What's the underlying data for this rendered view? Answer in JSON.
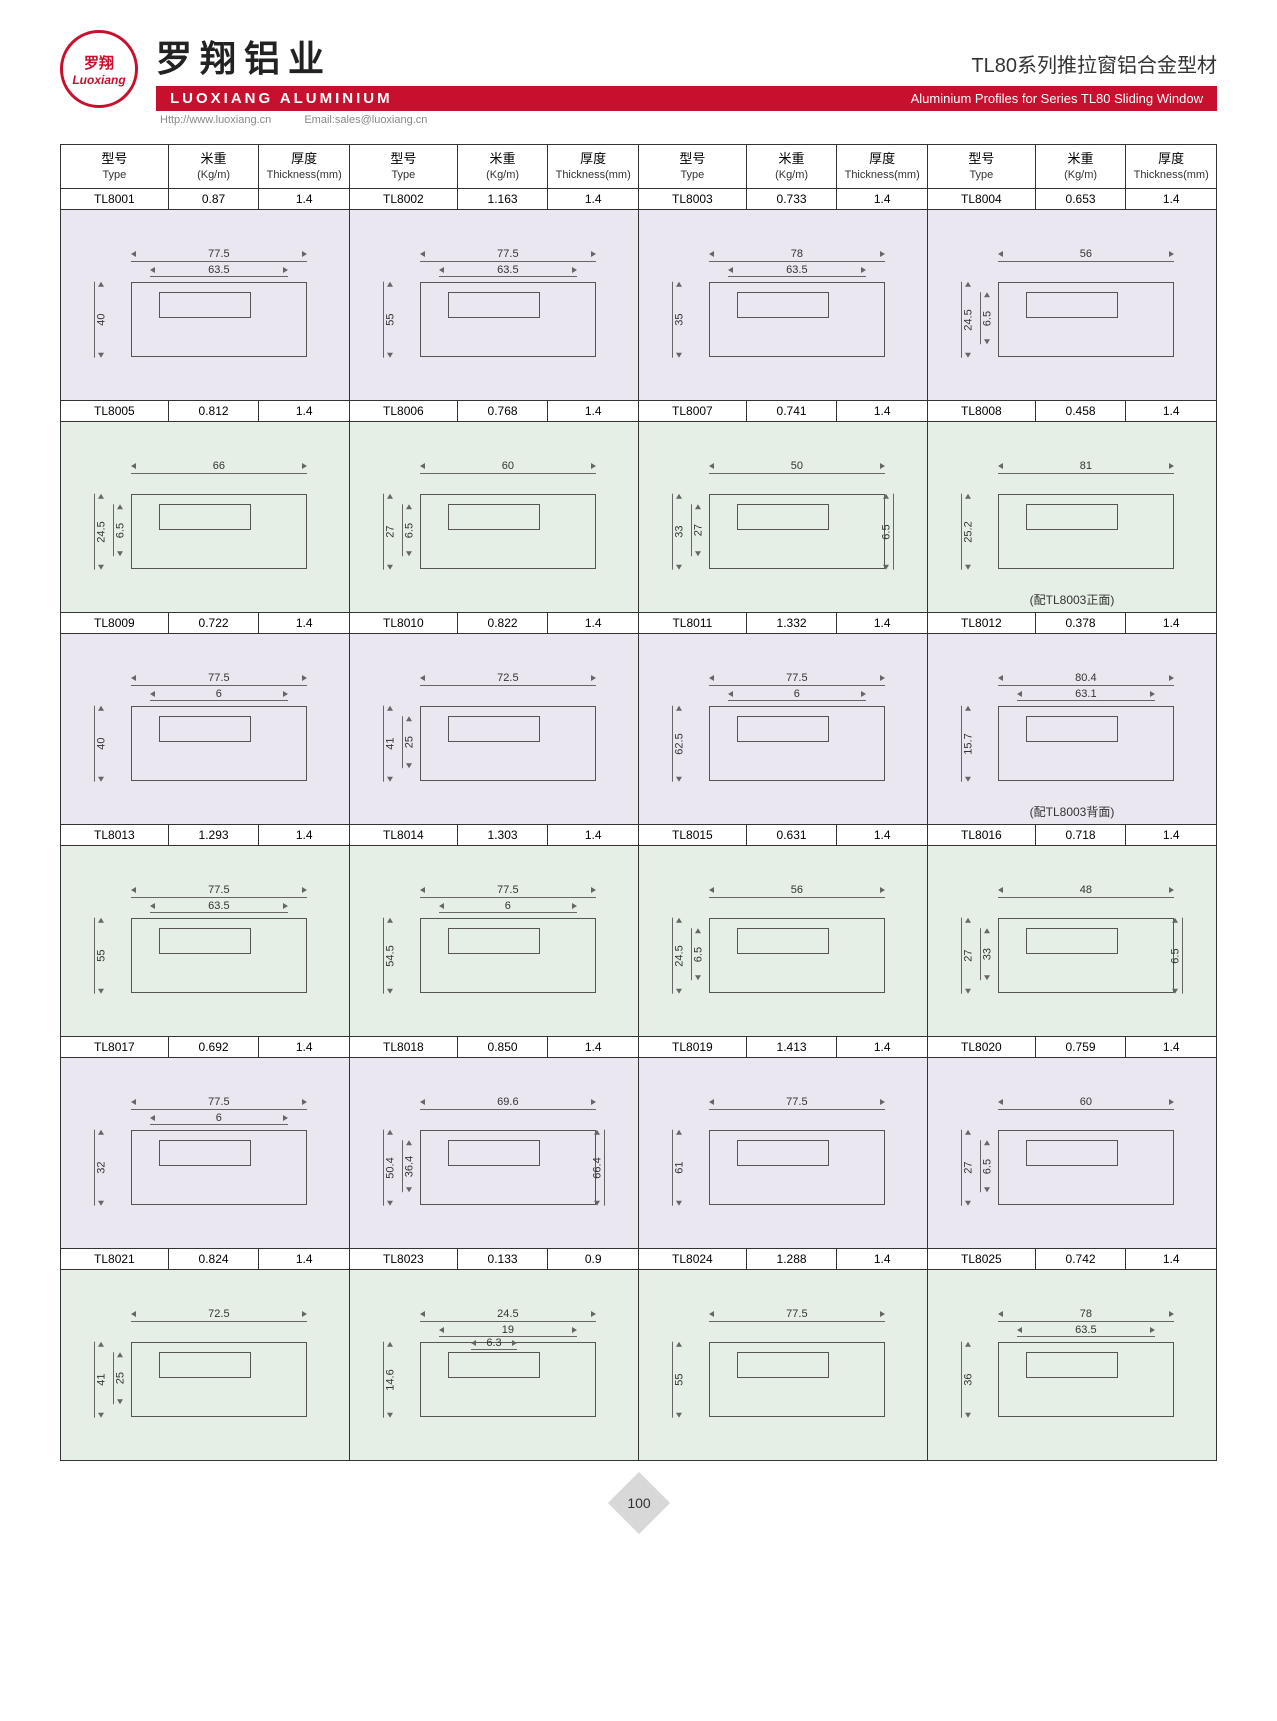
{
  "brand": {
    "logo_cn": "罗翔",
    "logo_en": "Luoxiang",
    "cn_title": "罗翔铝业",
    "en_title": "LUOXIANG ALUMINIUM",
    "series_cn": "TL80系列推拉窗铝合金型材",
    "series_en": "Aluminium Profiles for Series TL80 Sliding Window",
    "url": "Http://www.luoxiang.cn",
    "email": "Email:sales@luoxiang.cn"
  },
  "colors": {
    "brand_red": "#c8102e",
    "bg_a": "#ebe7f0",
    "bg_b": "#e6efe6",
    "line": "#555555"
  },
  "headers": {
    "type_cn": "型号",
    "type_en": "Type",
    "weight_cn": "米重",
    "weight_en": "(Kg/m)",
    "thick_cn": "厚度",
    "thick_en": "Thickness(mm)"
  },
  "rows": [
    {
      "bg": "a",
      "items": [
        {
          "type": "TL8001",
          "wt": "0.87",
          "thk": "1.4",
          "dims": {
            "w1": "77.5",
            "w2": "63.5",
            "h1": "40"
          }
        },
        {
          "type": "TL8002",
          "wt": "1.163",
          "thk": "1.4",
          "dims": {
            "w1": "77.5",
            "w2": "63.5",
            "h1": "55"
          }
        },
        {
          "type": "TL8003",
          "wt": "0.733",
          "thk": "1.4",
          "dims": {
            "w1": "78",
            "w2": "63.5",
            "h1": "35"
          }
        },
        {
          "type": "TL8004",
          "wt": "0.653",
          "thk": "1.4",
          "dims": {
            "w1": "56",
            "h1": "24.5",
            "h2": "6.5"
          }
        }
      ]
    },
    {
      "bg": "b",
      "items": [
        {
          "type": "TL8005",
          "wt": "0.812",
          "thk": "1.4",
          "dims": {
            "w1": "66",
            "h1": "24.5",
            "h2": "6.5"
          }
        },
        {
          "type": "TL8006",
          "wt": "0.768",
          "thk": "1.4",
          "dims": {
            "w1": "60",
            "h1": "27",
            "h2": "6.5"
          }
        },
        {
          "type": "TL8007",
          "wt": "0.741",
          "thk": "1.4",
          "dims": {
            "w1": "50",
            "h1": "33",
            "h2": "27",
            "h3": "6.5"
          }
        },
        {
          "type": "TL8008",
          "wt": "0.458",
          "thk": "1.4",
          "dims": {
            "w1": "81",
            "h1": "25.2"
          },
          "note": "(配TL8003正面)"
        }
      ]
    },
    {
      "bg": "a",
      "items": [
        {
          "type": "TL8009",
          "wt": "0.722",
          "thk": "1.4",
          "dims": {
            "w1": "77.5",
            "w2": "6",
            "h1": "40"
          }
        },
        {
          "type": "TL8010",
          "wt": "0.822",
          "thk": "1.4",
          "dims": {
            "w1": "72.5",
            "h1": "41",
            "h2": "25"
          }
        },
        {
          "type": "TL8011",
          "wt": "1.332",
          "thk": "1.4",
          "dims": {
            "w1": "77.5",
            "w2": "6",
            "h1": "62.5"
          }
        },
        {
          "type": "TL8012",
          "wt": "0.378",
          "thk": "1.4",
          "dims": {
            "w1": "80.4",
            "w2": "63.1",
            "h1": "15.7"
          },
          "note": "(配TL8003背面)"
        }
      ]
    },
    {
      "bg": "b",
      "items": [
        {
          "type": "TL8013",
          "wt": "1.293",
          "thk": "1.4",
          "dims": {
            "w1": "77.5",
            "w2": "63.5",
            "h1": "55"
          }
        },
        {
          "type": "TL8014",
          "wt": "1.303",
          "thk": "1.4",
          "dims": {
            "w1": "77.5",
            "w2": "6",
            "h1": "54.5"
          }
        },
        {
          "type": "TL8015",
          "wt": "0.631",
          "thk": "1.4",
          "dims": {
            "w1": "56",
            "h1": "24.5",
            "h2": "6.5"
          }
        },
        {
          "type": "TL8016",
          "wt": "0.718",
          "thk": "1.4",
          "dims": {
            "w1": "48",
            "h1": "27",
            "h2": "33",
            "h3": "6.5"
          }
        }
      ]
    },
    {
      "bg": "a",
      "items": [
        {
          "type": "TL8017",
          "wt": "0.692",
          "thk": "1.4",
          "dims": {
            "w1": "77.5",
            "w2": "6",
            "h1": "32"
          }
        },
        {
          "type": "TL8018",
          "wt": "0.850",
          "thk": "1.4",
          "dims": {
            "w1": "69.6",
            "h1": "50.4",
            "h2": "36.4",
            "h3": "66.4"
          }
        },
        {
          "type": "TL8019",
          "wt": "1.413",
          "thk": "1.4",
          "dims": {
            "w1": "77.5",
            "h1": "61"
          }
        },
        {
          "type": "TL8020",
          "wt": "0.759",
          "thk": "1.4",
          "dims": {
            "w1": "60",
            "h1": "27",
            "h2": "6.5"
          }
        }
      ]
    },
    {
      "bg": "b",
      "items": [
        {
          "type": "TL8021",
          "wt": "0.824",
          "thk": "1.4",
          "dims": {
            "w1": "72.5",
            "h1": "41",
            "h2": "25"
          }
        },
        {
          "type": "TL8023",
          "wt": "0.133",
          "thk": "0.9",
          "dims": {
            "w1": "24.5",
            "w2": "19",
            "w3": "6.3",
            "h1": "14.6"
          }
        },
        {
          "type": "TL8024",
          "wt": "1.288",
          "thk": "1.4",
          "dims": {
            "w1": "77.5",
            "h1": "55"
          }
        },
        {
          "type": "TL8025",
          "wt": "0.742",
          "thk": "1.4",
          "dims": {
            "w1": "78",
            "w2": "63.5",
            "h1": "36"
          }
        }
      ]
    }
  ],
  "page_number": "100"
}
